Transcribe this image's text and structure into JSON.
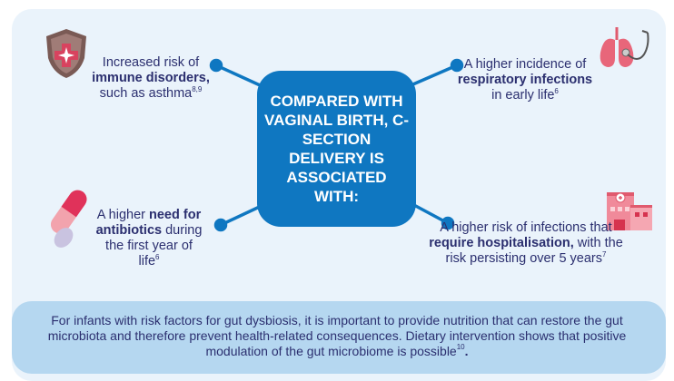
{
  "center_box": {
    "text": "COMPARED WITH VAGINAL BIRTH, C-SECTION DELIVERY IS ASSOCIATED WITH:"
  },
  "items": [
    {
      "icon": "shield-medical-icon",
      "pre": "Increased risk of",
      "bold": "immune disorders,",
      "post": "such as asthma",
      "ref": "8,9"
    },
    {
      "icon": "lungs-stethoscope-icon",
      "pre": "A higher incidence of ",
      "bold": "respiratory infections",
      "post": " in early life",
      "ref": "6"
    },
    {
      "icon": "capsule-pill-icon",
      "pre": "A higher ",
      "bold": "need for antibiotics",
      "post": " during the first year of life",
      "ref": "6"
    },
    {
      "icon": "hospital-icon",
      "pre": "A higher risk of infections that ",
      "bold": "require hospitalisation,",
      "post": " with the risk persisting over 5 years",
      "ref": "7"
    }
  ],
  "banner": {
    "text": "For infants with risk factors for gut dysbiosis, it is important to provide nutrition that can restore the gut microbiota and therefore prevent health-related consequences. Dietary intervention shows that positive modulation of the gut microbiome is possible",
    "ref": "10",
    "end": "."
  },
  "colors": {
    "panel": "#eaf3fb",
    "center": "#0f77c1",
    "banner": "#b5d7f0",
    "text": "#2b2f6f"
  }
}
